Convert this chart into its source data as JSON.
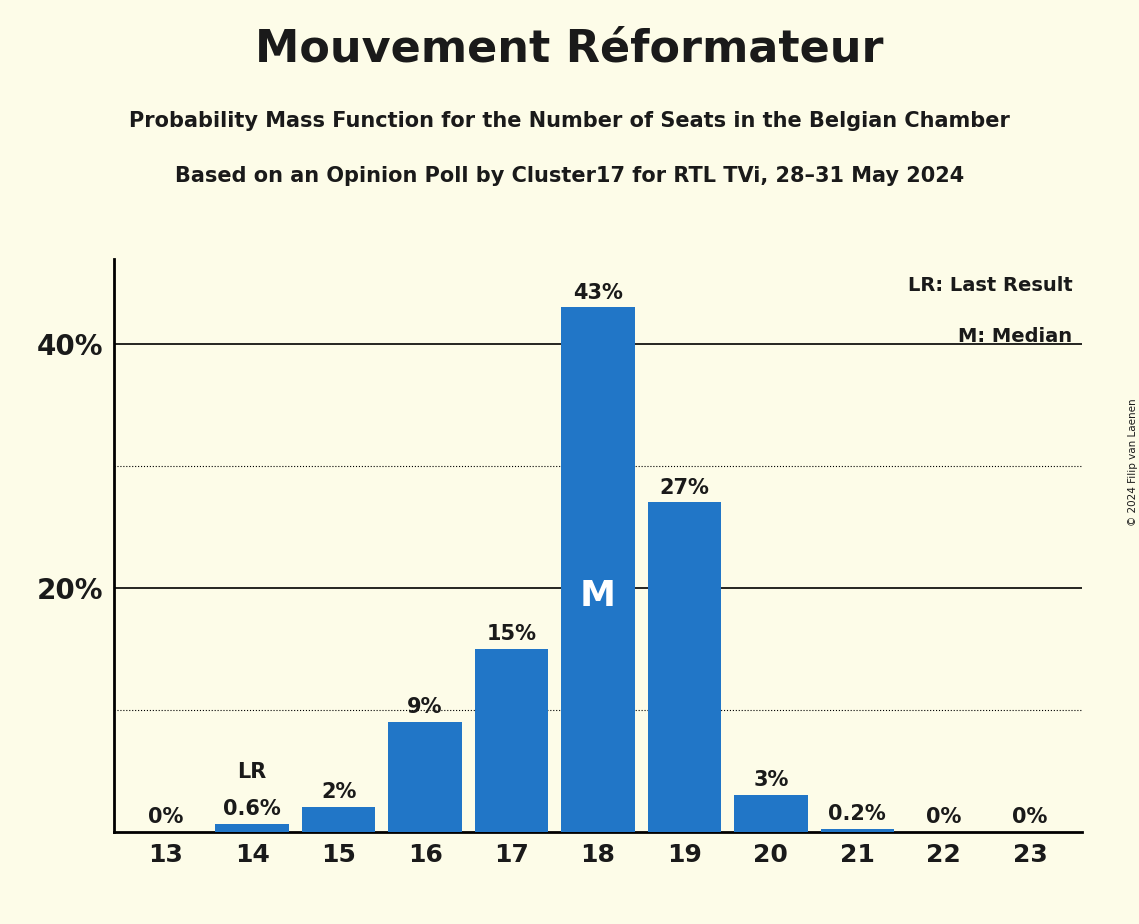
{
  "title": "Mouvement Réformateur",
  "subtitle1": "Probability Mass Function for the Number of Seats in the Belgian Chamber",
  "subtitle2": "Based on an Opinion Poll by Cluster17 for RTL TVi, 28–31 May 2024",
  "copyright": "© 2024 Filip van Laenen",
  "seats": [
    13,
    14,
    15,
    16,
    17,
    18,
    19,
    20,
    21,
    22,
    23
  ],
  "probabilities": [
    0.0,
    0.6,
    2.0,
    9.0,
    15.0,
    43.0,
    27.0,
    3.0,
    0.2,
    0.0,
    0.0
  ],
  "labels": [
    "0%",
    "0.6%",
    "2%",
    "9%",
    "15%",
    "43%",
    "27%",
    "3%",
    "0.2%",
    "0%",
    "0%"
  ],
  "bar_color": "#2176c7",
  "background_color": "#fdfce8",
  "text_color": "#1a1a1a",
  "median_seat": 18,
  "lr_seat": 14,
  "dotted_lines": [
    10,
    30
  ],
  "solid_lines": [
    20,
    40
  ],
  "ylim": [
    0,
    47
  ],
  "lr_legend": "LR: Last Result",
  "m_legend": "M: Median"
}
